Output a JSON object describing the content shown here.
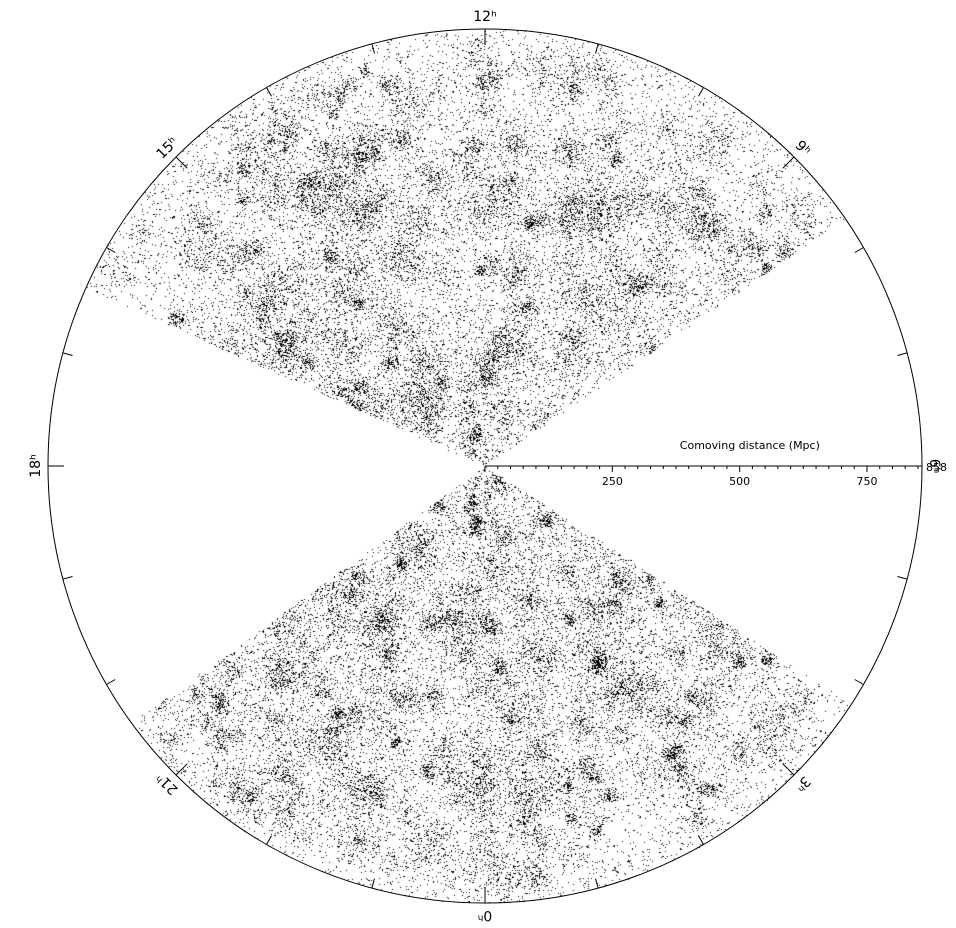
{
  "chart_data": {
    "type": "scatter",
    "projection": "polar wedge (right ascension vs comoving distance)",
    "axis": {
      "title": "Comoving distance (Mpc)",
      "ticks": [
        250,
        500,
        750
      ],
      "tick_labels": [
        "250",
        "500",
        "750"
      ],
      "max": 858,
      "max_label": "858"
    },
    "ra_axis": {
      "tick_hours_major": [
        12,
        15,
        18,
        21,
        0,
        3,
        6,
        9
      ],
      "tick_labels": [
        "12ʰ",
        "15ʰ",
        "18ʰ",
        "21ʰ",
        "0ʰ",
        "3ʰ",
        "6ʰ",
        "9ʰ"
      ],
      "minor_step_hours": 1
    },
    "wedges": [
      {
        "name": "north",
        "ra_start_h": 8.3,
        "ra_end_h": 16.4,
        "max_distance": 858
      },
      {
        "name": "south",
        "ra_start_h": 20.4,
        "ra_end_h": 3.8,
        "max_distance": 858
      }
    ],
    "marker_color": "#000000",
    "background": "#ffffff",
    "grid": false
  }
}
